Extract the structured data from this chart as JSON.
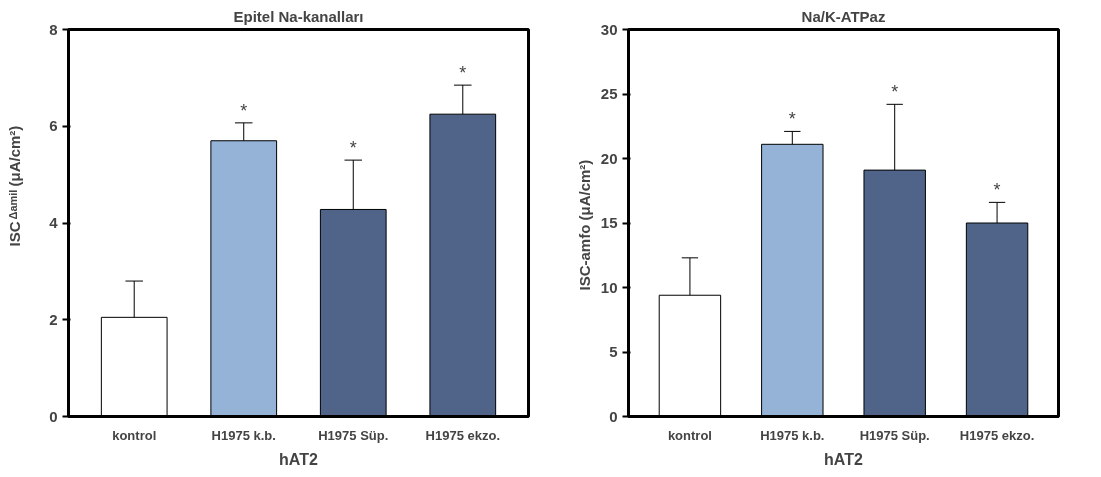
{
  "chart_data": [
    {
      "type": "bar",
      "title": "Epitel Na-kanalları",
      "ylabel": "ISC$_{Δamil}$  (μA/cm²)",
      "xlabel": "hAT2",
      "categories": [
        "kontrol",
        "H1975 k.b.",
        "H1975 Süp.",
        "H1975 ekzo."
      ],
      "values": [
        2.05,
        5.7,
        4.28,
        6.25
      ],
      "colors": [
        "#ffffff",
        "#95b3d7",
        "#4f6488",
        "#4f6488"
      ],
      "errors": [
        [
          2.05,
          2.8
        ],
        [
          5.7,
          6.07
        ],
        [
          4.28,
          5.3
        ],
        [
          6.25,
          6.85
        ]
      ],
      "ylim": [
        0,
        8
      ],
      "yticks": [
        0,
        2,
        4,
        6,
        8
      ],
      "annotations": [
        {
          "text": "*",
          "x": "H1975 k.b.",
          "y": 6.07
        },
        {
          "text": "*",
          "x": "H1975 Süp.",
          "y": 5.3
        },
        {
          "text": "*",
          "x": "H1975 ekzo.",
          "y": 6.85
        }
      ]
    },
    {
      "type": "bar",
      "title": "Na/K-ATPaz",
      "ylabel": "ISC-amfo  (μA/cm²)",
      "xlabel": "hAT2",
      "categories": [
        "kontrol",
        "H1975 k.b.",
        "H1975 Süp.",
        "H1975 ekzo."
      ],
      "values": [
        9.4,
        21.1,
        19.1,
        15.0
      ],
      "colors": [
        "#ffffff",
        "#95b3d7",
        "#4f6488",
        "#4f6488"
      ],
      "errors": [
        [
          9.4,
          12.3
        ],
        [
          21.1,
          22.1
        ],
        [
          19.1,
          24.2
        ],
        [
          15.0,
          16.6
        ]
      ],
      "ylim": [
        0,
        30
      ],
      "yticks": [
        0,
        5,
        10,
        15,
        20,
        25,
        30
      ],
      "annotations": [
        {
          "text": "*",
          "x": "H1975 k.b.",
          "y": 22.1
        },
        {
          "text": "*",
          "x": "H1975 Süp.",
          "y": 24.2
        },
        {
          "text": "*",
          "x": "H1975 ekzo.",
          "y": 16.6
        }
      ]
    }
  ]
}
